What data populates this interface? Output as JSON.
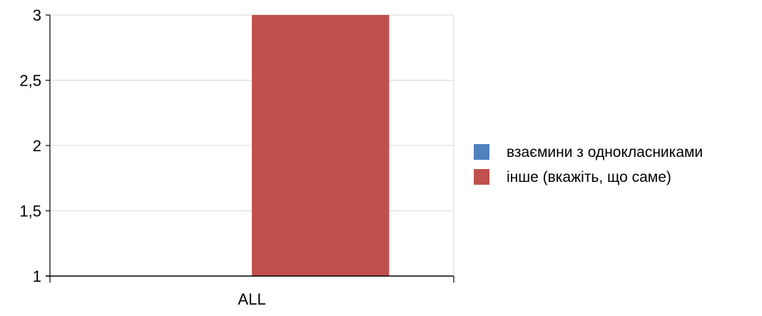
{
  "chart_data": {
    "type": "bar",
    "title": "",
    "xlabel": "",
    "ylabel": "",
    "categories": [
      "ALL"
    ],
    "series": [
      {
        "name": "взаємини з однокласниками",
        "color": "#4f81bd",
        "values": [
          1
        ]
      },
      {
        "name": "інше (вкажіть, що саме)",
        "color": "#c0504d",
        "values": [
          3
        ]
      }
    ],
    "ylim": [
      1,
      3
    ],
    "yticks": [
      1,
      1.5,
      2,
      2.5,
      3
    ],
    "ytick_labels": [
      "1",
      "1,5",
      "2",
      "2,5",
      "3"
    ],
    "grid": true,
    "legend_position": "right"
  }
}
